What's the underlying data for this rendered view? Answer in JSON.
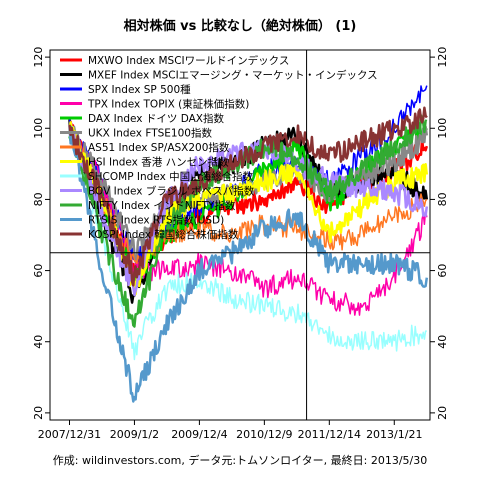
{
  "chart_data": {
    "type": "line",
    "title": "相対株価 vs 比較なし（絶対株価） (1)",
    "caption": "作成: wildinvestors.com, データ元:トムソンロイター, 最終日: 2013/5/30",
    "x_tick_labels": [
      "2007/12/31",
      "2009/1/2",
      "2009/12/4",
      "2010/12/9",
      "2011/12/14",
      "2013/1/21"
    ],
    "x_tick_positions": [
      0.0,
      1.0,
      2.0,
      3.0,
      4.0,
      5.0
    ],
    "xlim": [
      -0.3,
      5.55
    ],
    "ylim": [
      18,
      122
    ],
    "y_ticks": [
      20,
      40,
      60,
      80,
      100,
      120
    ],
    "y_tick_labels": [
      "20",
      "40",
      "60",
      "80",
      "100",
      "120"
    ],
    "reference_lines": {
      "horizontal_y": 65,
      "vertical_x": 3.65
    },
    "legend_position": "top-left",
    "series": [
      {
        "name": "MXWO Index MSCIワールドインデックス",
        "color": "#ff0000",
        "width": 2.5,
        "anchors": [
          [
            0,
            100
          ],
          [
            0.5,
            82
          ],
          [
            1,
            60
          ],
          [
            1.5,
            70
          ],
          [
            2,
            75
          ],
          [
            2.5,
            78
          ],
          [
            3,
            80
          ],
          [
            3.5,
            85
          ],
          [
            4,
            78
          ],
          [
            4.5,
            85
          ],
          [
            5,
            88
          ],
          [
            5.5,
            95
          ]
        ]
      },
      {
        "name": "MXEF Index MSCIエマージング・マーケット・インデックス",
        "color": "#000000",
        "width": 2.5,
        "anchors": [
          [
            0,
            100
          ],
          [
            0.5,
            75
          ],
          [
            1,
            52
          ],
          [
            1.5,
            75
          ],
          [
            2,
            88
          ],
          [
            2.5,
            90
          ],
          [
            3,
            95
          ],
          [
            3.5,
            98
          ],
          [
            4,
            82
          ],
          [
            4.5,
            85
          ],
          [
            5,
            88
          ],
          [
            5.5,
            80
          ]
        ]
      },
      {
        "name": "SPX Index SP 500種",
        "color": "#0000ff",
        "width": 1.5,
        "anchors": [
          [
            0,
            100
          ],
          [
            0.5,
            85
          ],
          [
            1,
            63
          ],
          [
            1.5,
            72
          ],
          [
            2,
            78
          ],
          [
            2.5,
            82
          ],
          [
            3,
            88
          ],
          [
            3.5,
            90
          ],
          [
            4,
            85
          ],
          [
            4.5,
            92
          ],
          [
            5,
            100
          ],
          [
            5.5,
            112
          ]
        ]
      },
      {
        "name": "TPX Index TOPIX (東証株価指数)",
        "color": "#ff00aa",
        "width": 1.5,
        "anchors": [
          [
            0,
            100
          ],
          [
            0.5,
            85
          ],
          [
            1,
            60
          ],
          [
            1.5,
            60
          ],
          [
            2,
            62
          ],
          [
            2.5,
            60
          ],
          [
            3,
            55
          ],
          [
            3.5,
            58
          ],
          [
            4,
            52
          ],
          [
            4.5,
            50
          ],
          [
            5,
            58
          ],
          [
            5.5,
            75
          ]
        ]
      },
      {
        "name": "DAX Index ドイツ DAX指数",
        "color": "#00cc00",
        "width": 2.5,
        "anchors": [
          [
            0,
            100
          ],
          [
            0.5,
            80
          ],
          [
            1,
            57
          ],
          [
            1.5,
            70
          ],
          [
            2,
            75
          ],
          [
            2.5,
            80
          ],
          [
            3,
            88
          ],
          [
            3.5,
            95
          ],
          [
            4,
            78
          ],
          [
            4.5,
            88
          ],
          [
            5,
            95
          ],
          [
            5.5,
            100
          ]
        ]
      },
      {
        "name": "UKX Index FTSE100指数",
        "color": "#888888",
        "width": 2.5,
        "anchors": [
          [
            0,
            100
          ],
          [
            0.5,
            85
          ],
          [
            1,
            65
          ],
          [
            1.5,
            78
          ],
          [
            2,
            80
          ],
          [
            2.5,
            82
          ],
          [
            3,
            85
          ],
          [
            3.5,
            88
          ],
          [
            4,
            82
          ],
          [
            4.5,
            86
          ],
          [
            5,
            90
          ],
          [
            5.5,
            98
          ]
        ]
      },
      {
        "name": "AS51 Index SP/ASX200指数",
        "color": "#ff7722",
        "width": 1.5,
        "anchors": [
          [
            0,
            100
          ],
          [
            0.5,
            80
          ],
          [
            1,
            62
          ],
          [
            1.5,
            70
          ],
          [
            2,
            72
          ],
          [
            2.5,
            70
          ],
          [
            3,
            73
          ],
          [
            3.5,
            72
          ],
          [
            4,
            68
          ],
          [
            4.5,
            70
          ],
          [
            5,
            75
          ],
          [
            5.5,
            80
          ]
        ]
      },
      {
        "name": "HSI Index 香港 ハンセン指数",
        "color": "#ffff00",
        "width": 2.5,
        "anchors": [
          [
            0,
            100
          ],
          [
            0.5,
            80
          ],
          [
            1,
            55
          ],
          [
            1.5,
            75
          ],
          [
            2,
            80
          ],
          [
            2.5,
            82
          ],
          [
            3,
            85
          ],
          [
            3.5,
            88
          ],
          [
            4,
            70
          ],
          [
            4.5,
            78
          ],
          [
            5,
            85
          ],
          [
            5.5,
            87
          ]
        ]
      },
      {
        "name": "SHCOMP Index 中国上海総合指数",
        "color": "#99ffff",
        "width": 1.5,
        "anchors": [
          [
            0,
            100
          ],
          [
            0.5,
            70
          ],
          [
            1,
            38
          ],
          [
            1.5,
            55
          ],
          [
            2,
            58
          ],
          [
            2.5,
            52
          ],
          [
            3,
            50
          ],
          [
            3.5,
            48
          ],
          [
            4,
            42
          ],
          [
            4.5,
            40
          ],
          [
            5,
            40
          ],
          [
            5.5,
            43
          ]
        ]
      },
      {
        "name": "BOV Index ブラジル ボベスパ指数",
        "color": "#aa88ff",
        "width": 2.5,
        "anchors": [
          [
            0,
            100
          ],
          [
            0.5,
            75
          ],
          [
            1,
            55
          ],
          [
            1.5,
            80
          ],
          [
            2,
            90
          ],
          [
            2.5,
            92
          ],
          [
            3,
            95
          ],
          [
            3.5,
            90
          ],
          [
            4,
            85
          ],
          [
            4.5,
            83
          ],
          [
            5,
            82
          ],
          [
            5.5,
            78
          ]
        ]
      },
      {
        "name": "NIFTY Index インドNIFTY指数",
        "color": "#33aa33",
        "width": 2.5,
        "anchors": [
          [
            0,
            100
          ],
          [
            0.5,
            70
          ],
          [
            1,
            45
          ],
          [
            1.5,
            72
          ],
          [
            2,
            85
          ],
          [
            2.5,
            88
          ],
          [
            3,
            95
          ],
          [
            3.5,
            92
          ],
          [
            4,
            82
          ],
          [
            4.5,
            88
          ],
          [
            5,
            95
          ],
          [
            5.5,
            102
          ]
        ]
      },
      {
        "name": "RTSIS Index RTS指数(USD)",
        "color": "#5599cc",
        "width": 2.5,
        "anchors": [
          [
            0,
            100
          ],
          [
            0.5,
            60
          ],
          [
            1,
            24
          ],
          [
            1.5,
            45
          ],
          [
            2,
            60
          ],
          [
            2.5,
            65
          ],
          [
            3,
            72
          ],
          [
            3.5,
            75
          ],
          [
            4,
            62
          ],
          [
            4.5,
            62
          ],
          [
            5,
            62
          ],
          [
            5.5,
            58
          ]
        ]
      },
      {
        "name": "KOSPI Index 韓国総合株価指数",
        "color": "#883333",
        "width": 2.5,
        "anchors": [
          [
            0,
            100
          ],
          [
            0.5,
            80
          ],
          [
            1,
            58
          ],
          [
            1.5,
            80
          ],
          [
            2,
            85
          ],
          [
            2.5,
            90
          ],
          [
            3,
            95
          ],
          [
            3.5,
            98
          ],
          [
            4,
            92
          ],
          [
            4.5,
            96
          ],
          [
            5,
            100
          ],
          [
            5.5,
            103
          ]
        ]
      }
    ]
  }
}
